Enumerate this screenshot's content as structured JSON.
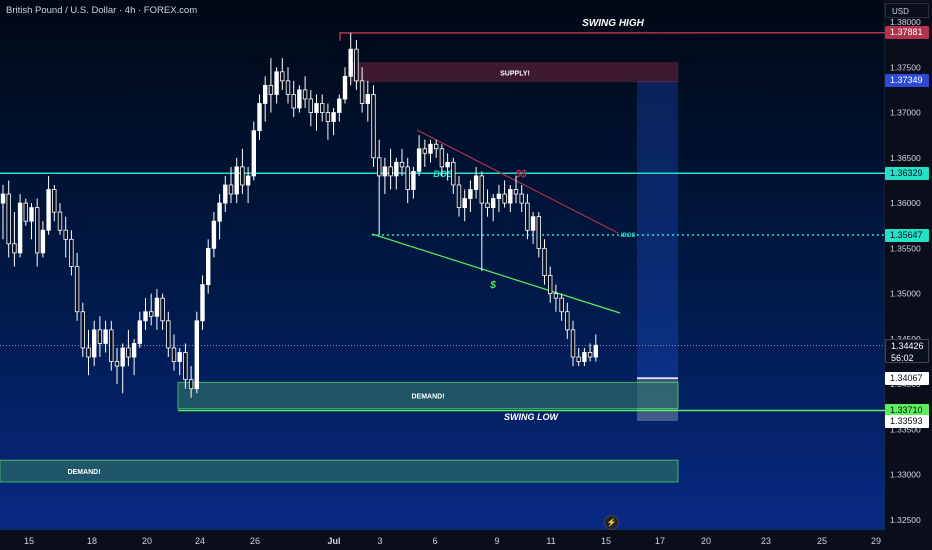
{
  "header": {
    "title": "British Pound / U.S. Dollar · 4h · FOREX.com",
    "currency": "USD"
  },
  "colors": {
    "up": "#ffffff",
    "down": "#ffffff",
    "teal": "#26e0c5",
    "supply": "#b2334d",
    "demand": "#5cf05c",
    "crosshair": "#aab4d0",
    "projection": "#2962ff"
  },
  "price_axis": {
    "ticks": [
      "1.38000",
      "1.37500",
      "1.37000",
      "1.36500",
      "1.36000",
      "1.35500",
      "1.35000",
      "1.34500",
      "1.34000",
      "1.33500",
      "1.33000",
      "1.32500"
    ],
    "labels": [
      {
        "text": "1.37881",
        "bg": "#b2334d",
        "fg": "#ffffff"
      },
      {
        "text": "1.37349",
        "bg": "#2d4bd6",
        "fg": "#ffffff"
      },
      {
        "text": "1.36329",
        "bg": "#26e0c5",
        "fg": "#0b1020"
      },
      {
        "text": "1.35647",
        "bg": "#26e0c5",
        "fg": "#0b1020"
      },
      {
        "text": "1.34426",
        "sub": "56:02",
        "bg": "#0b1020",
        "fg": "#ffffff"
      },
      {
        "text": "1.34067",
        "bg": "#ffffff",
        "fg": "#0b1020"
      },
      {
        "text": "1.33710",
        "bg": "#5cf05c",
        "fg": "#0b1020"
      },
      {
        "text": "1.33593",
        "bg": "#ffffff",
        "fg": "#0b1020"
      }
    ]
  },
  "time_axis": {
    "ticks": [
      "15",
      "18",
      "20",
      "24",
      "26",
      "Jul",
      "3",
      "6",
      "9",
      "11",
      "15",
      "17",
      "20",
      "23",
      "25",
      "29"
    ]
  },
  "annotations": {
    "swing_high": "SWING HIGH",
    "swing_low": "SWING LOW",
    "supply": "SUPPLY!",
    "demand_1": "DEMAND!",
    "demand_2": "DEMAND!",
    "bos": "BOS",
    "ibos": "IBOS",
    "s_upper": "$$",
    "s_lower": "$"
  },
  "candles": [
    [
      1.36,
      1.362,
      1.356,
      1.361
    ],
    [
      1.361,
      1.3625,
      1.354,
      1.3555
    ],
    [
      1.3555,
      1.359,
      1.353,
      1.3545
    ],
    [
      1.3545,
      1.361,
      1.354,
      1.36
    ],
    [
      1.36,
      1.3605,
      1.3575,
      1.358
    ],
    [
      1.358,
      1.36,
      1.356,
      1.3595
    ],
    [
      1.3595,
      1.3605,
      1.353,
      1.3545
    ],
    [
      1.3545,
      1.358,
      1.354,
      1.357
    ],
    [
      1.357,
      1.363,
      1.3565,
      1.3615
    ],
    [
      1.3615,
      1.362,
      1.358,
      1.359
    ],
    [
      1.359,
      1.36,
      1.3565,
      1.357
    ],
    [
      1.357,
      1.3585,
      1.354,
      1.356
    ],
    [
      1.356,
      1.357,
      1.352,
      1.353
    ],
    [
      1.353,
      1.3545,
      1.347,
      1.348
    ],
    [
      1.348,
      1.349,
      1.343,
      1.344
    ],
    [
      1.344,
      1.346,
      1.341,
      1.343
    ],
    [
      1.343,
      1.347,
      1.342,
      1.346
    ],
    [
      1.346,
      1.3475,
      1.343,
      1.3445
    ],
    [
      1.3445,
      1.347,
      1.3435,
      1.346
    ],
    [
      1.346,
      1.347,
      1.3415,
      1.3425
    ],
    [
      1.3425,
      1.344,
      1.34,
      1.342
    ],
    [
      1.342,
      1.3445,
      1.339,
      1.344
    ],
    [
      1.344,
      1.346,
      1.342,
      1.343
    ],
    [
      1.343,
      1.345,
      1.341,
      1.3445
    ],
    [
      1.3445,
      1.348,
      1.344,
      1.347
    ],
    [
      1.347,
      1.3495,
      1.346,
      1.348
    ],
    [
      1.348,
      1.35,
      1.3465,
      1.3475
    ],
    [
      1.3475,
      1.3505,
      1.346,
      1.3495
    ],
    [
      1.3495,
      1.35,
      1.346,
      1.347
    ],
    [
      1.347,
      1.348,
      1.343,
      1.344
    ],
    [
      1.344,
      1.3455,
      1.3415,
      1.3425
    ],
    [
      1.3425,
      1.344,
      1.341,
      1.3435
    ],
    [
      1.3435,
      1.3445,
      1.3395,
      1.3405
    ],
    [
      1.3405,
      1.342,
      1.3385,
      1.3395
    ],
    [
      1.3395,
      1.348,
      1.339,
      1.347
    ],
    [
      1.347,
      1.352,
      1.346,
      1.351
    ],
    [
      1.351,
      1.356,
      1.35,
      1.355
    ],
    [
      1.355,
      1.359,
      1.354,
      1.358
    ],
    [
      1.358,
      1.361,
      1.356,
      1.36
    ],
    [
      1.36,
      1.363,
      1.359,
      1.362
    ],
    [
      1.362,
      1.364,
      1.36,
      1.361
    ],
    [
      1.361,
      1.365,
      1.36,
      1.364
    ],
    [
      1.364,
      1.366,
      1.361,
      1.362
    ],
    [
      1.362,
      1.364,
      1.36,
      1.363
    ],
    [
      1.363,
      1.369,
      1.3625,
      1.368
    ],
    [
      1.368,
      1.372,
      1.367,
      1.371
    ],
    [
      1.371,
      1.374,
      1.369,
      1.373
    ],
    [
      1.373,
      1.376,
      1.37,
      1.372
    ],
    [
      1.372,
      1.375,
      1.371,
      1.3745
    ],
    [
      1.3745,
      1.376,
      1.3725,
      1.3735
    ],
    [
      1.3735,
      1.375,
      1.371,
      1.372
    ],
    [
      1.372,
      1.3735,
      1.3695,
      1.3705
    ],
    [
      1.3705,
      1.373,
      1.37,
      1.3725
    ],
    [
      1.3725,
      1.374,
      1.3705,
      1.3715
    ],
    [
      1.3715,
      1.3725,
      1.3685,
      1.37
    ],
    [
      1.37,
      1.372,
      1.368,
      1.371
    ],
    [
      1.371,
      1.372,
      1.369,
      1.37
    ],
    [
      1.37,
      1.371,
      1.367,
      1.369
    ],
    [
      1.369,
      1.3705,
      1.3675,
      1.37
    ],
    [
      1.37,
      1.372,
      1.369,
      1.3715
    ],
    [
      1.3715,
      1.375,
      1.371,
      1.374
    ],
    [
      1.374,
      1.3788,
      1.373,
      1.377
    ],
    [
      1.377,
      1.378,
      1.3725,
      1.3735
    ],
    [
      1.3735,
      1.375,
      1.37,
      1.371
    ],
    [
      1.371,
      1.3735,
      1.369,
      1.372
    ],
    [
      1.372,
      1.373,
      1.364,
      1.365
    ],
    [
      1.365,
      1.367,
      1.3565,
      1.363
    ],
    [
      1.363,
      1.365,
      1.361,
      1.364
    ],
    [
      1.364,
      1.366,
      1.3615,
      1.363
    ],
    [
      1.363,
      1.365,
      1.3615,
      1.3645
    ],
    [
      1.3645,
      1.366,
      1.363,
      1.364
    ],
    [
      1.364,
      1.365,
      1.36,
      1.3615
    ],
    [
      1.3615,
      1.364,
      1.3605,
      1.3635
    ],
    [
      1.3635,
      1.3675,
      1.363,
      1.366
    ],
    [
      1.366,
      1.367,
      1.364,
      1.3655
    ],
    [
      1.3655,
      1.367,
      1.3645,
      1.3665
    ],
    [
      1.3665,
      1.367,
      1.365,
      1.366
    ],
    [
      1.366,
      1.3665,
      1.363,
      1.364
    ],
    [
      1.364,
      1.3655,
      1.3625,
      1.3645
    ],
    [
      1.3645,
      1.365,
      1.361,
      1.362
    ],
    [
      1.362,
      1.363,
      1.3585,
      1.3595
    ],
    [
      1.3595,
      1.3615,
      1.358,
      1.3605
    ],
    [
      1.3605,
      1.3625,
      1.359,
      1.3615
    ],
    [
      1.3615,
      1.364,
      1.3605,
      1.363
    ],
    [
      1.363,
      1.3635,
      1.3525,
      1.36
    ],
    [
      1.36,
      1.3615,
      1.3585,
      1.3595
    ],
    [
      1.3595,
      1.361,
      1.358,
      1.3605
    ],
    [
      1.3605,
      1.362,
      1.359,
      1.361
    ],
    [
      1.361,
      1.3625,
      1.3595,
      1.36
    ],
    [
      1.36,
      1.362,
      1.359,
      1.3615
    ],
    [
      1.3615,
      1.363,
      1.36,
      1.361
    ],
    [
      1.361,
      1.362,
      1.359,
      1.36
    ],
    [
      1.36,
      1.361,
      1.356,
      1.357
    ],
    [
      1.357,
      1.359,
      1.3555,
      1.3585
    ],
    [
      1.3585,
      1.359,
      1.354,
      1.355
    ],
    [
      1.355,
      1.356,
      1.351,
      1.352
    ],
    [
      1.352,
      1.353,
      1.349,
      1.35
    ],
    [
      1.35,
      1.351,
      1.348,
      1.3495
    ],
    [
      1.3495,
      1.35,
      1.347,
      1.348
    ],
    [
      1.348,
      1.349,
      1.345,
      1.346
    ],
    [
      1.346,
      1.347,
      1.342,
      1.343
    ],
    [
      1.343,
      1.344,
      1.342,
      1.3425
    ],
    [
      1.3425,
      1.344,
      1.342,
      1.3435
    ],
    [
      1.3435,
      1.3445,
      1.3425,
      1.343
    ],
    [
      1.343,
      1.3455,
      1.3425,
      1.3443
    ]
  ]
}
